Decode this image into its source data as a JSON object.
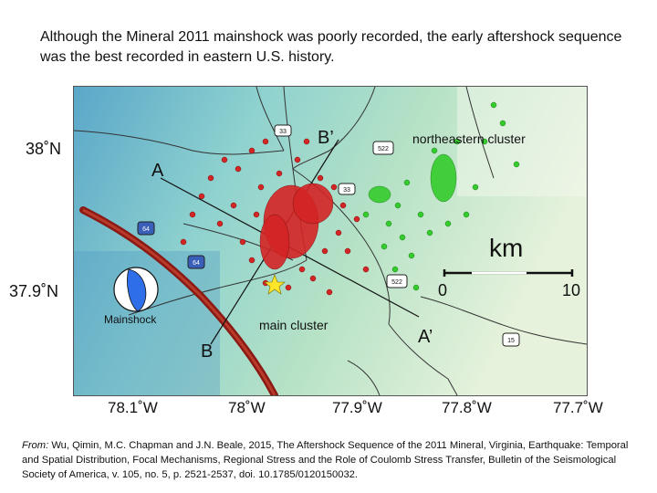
{
  "title": "Although the Mineral 2011 mainshock was poorly recorded, the early aftershock sequence was the best recorded in eastern U.S. history.",
  "map": {
    "lat_labels": [
      "38˚N",
      "37.9˚N"
    ],
    "lon_labels": [
      "78.1˚W",
      "78˚W",
      "77.9˚W",
      "77.8˚W",
      "77.7˚W"
    ],
    "section_labels": {
      "a": "A",
      "b": "B",
      "a_prime": "A’",
      "b_prime": "B’"
    },
    "cluster_labels": {
      "northeastern": "northeastern cluster",
      "main": "main cluster"
    },
    "mainshock_label": "Mainshock",
    "scale_bar": {
      "unit": "km",
      "start": "0",
      "end": "10"
    },
    "road_shields": {
      "r33a": "33",
      "r33b": "33",
      "r522a": "522",
      "r522b": "522",
      "i64": "64",
      "r15": "15",
      "r64b": "64"
    },
    "colors": {
      "main_cluster": "#d42424",
      "northeastern_cluster": "#34cc2c",
      "fault_band": "#8b1a14",
      "mainshock_star": "#ffe52a",
      "beachball": "#2e6ee8"
    }
  },
  "citation": {
    "from_label": "From:",
    "text": " Wu, Qimin, M.C. Chapman and J.N. Beale, 2015, The Aftershock Sequence of the 2011 Mineral, Virginia, Earthquake: Temporal and Spatial Distribution, Focal Mechanisms, Regional Stress and the Role of Coulomb Stress Transfer, Bulletin of the Seismological Society of America, v. 105, no. 5, p. 2521-2537, doi. 10.1785/0120150032."
  }
}
